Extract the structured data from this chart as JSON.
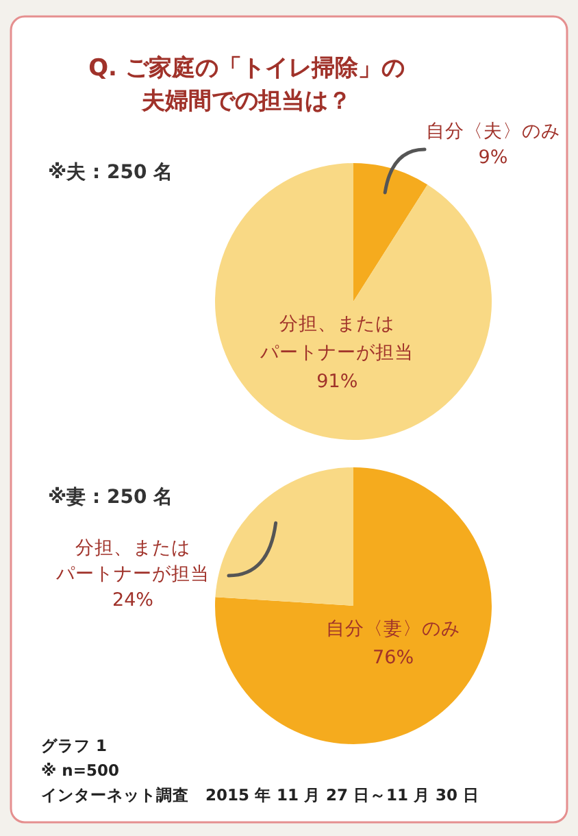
{
  "chart_data": [
    {
      "type": "pie",
      "title": "Q. ご家庭の「トイレ掃除」の夫婦間での担当は？",
      "subtitle": "※夫 : 250 名",
      "categories": [
        "自分〈夫〉のみ",
        "分担、またはパートナーが担当"
      ],
      "values": [
        9,
        91
      ],
      "value_labels": [
        "9%",
        "91%"
      ],
      "colors": [
        "#f5ab1e",
        "#f9d985"
      ]
    },
    {
      "type": "pie",
      "subtitle": "※妻 : 250 名",
      "categories": [
        "自分〈妻〉のみ",
        "分担、またはパートナーが担当"
      ],
      "values": [
        76,
        24
      ],
      "value_labels": [
        "76%",
        "24%"
      ],
      "colors": [
        "#f5ab1e",
        "#f9d985"
      ],
      "annotations": [
        "グラフ 1",
        "※ n=500",
        "インターネット調査　2015 年 11 月 27 日～11 月 30 日"
      ]
    }
  ]
}
